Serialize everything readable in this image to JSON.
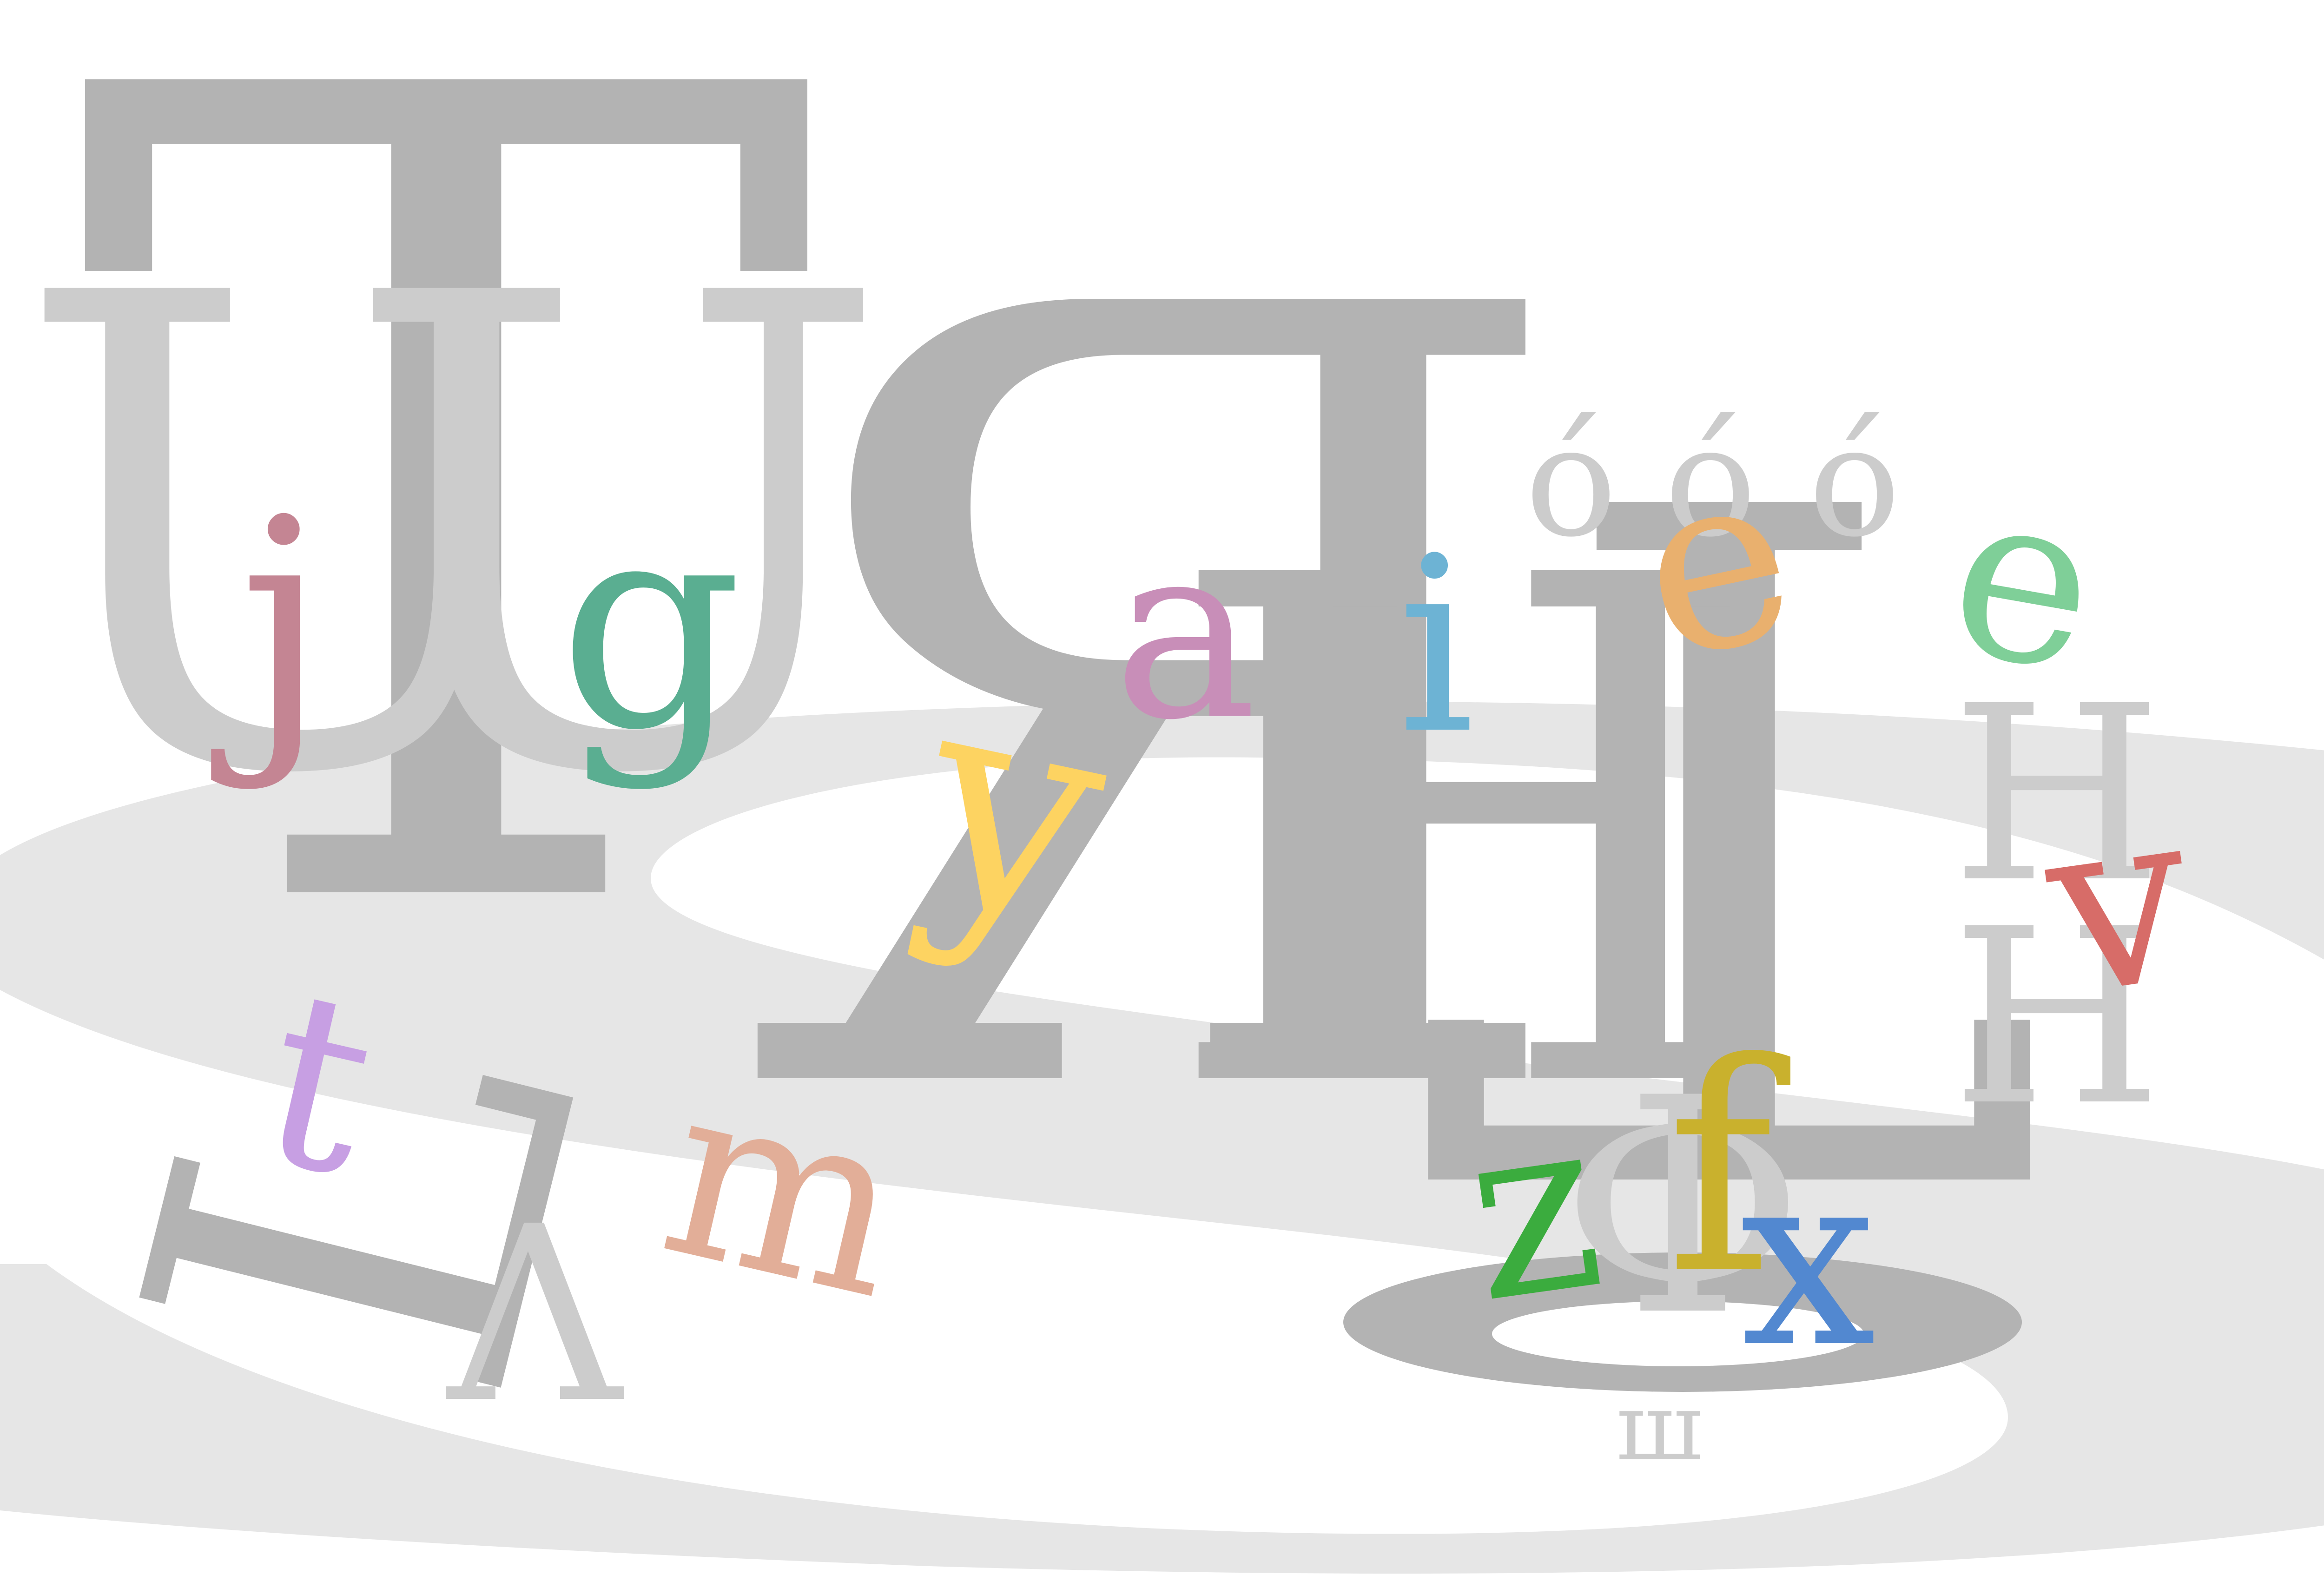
{
  "canvas": {
    "background": "#ffffff"
  },
  "colors": {
    "dark_gray": "#b3b3b3",
    "light_gray": "#cccccc",
    "band_gray": "#e6e6e6",
    "mauve": "#c48593",
    "teal": "#5aae91",
    "purple_pink": "#c88eb8",
    "yellow": "#fdd361",
    "sky_blue": "#6db3d4",
    "orange": "#e9b06e",
    "mint": "#7fcf98",
    "red": "#d76c68",
    "lavender": "#c79fe3",
    "salmon": "#e2ae98",
    "green": "#3bac3e",
    "mustard": "#c9b12d",
    "blue": "#5288d0"
  },
  "glyphs": {
    "big_T": "T",
    "U_left": "U",
    "U_right": "U",
    "big_R": "Я",
    "big_T_right": "T",
    "H_mid": "H",
    "H_stack_top": "H",
    "H_stack_bottom": "H",
    "o_1": "ó",
    "o_2": "ó",
    "o_3": "ó",
    "j": "j",
    "g": "g",
    "a": "a",
    "y": "y",
    "i": "i",
    "e_orange": "e",
    "e_mint": "e",
    "v": "v",
    "t": "t",
    "m": "m",
    "L_rot": "L",
    "lambda": "Λ",
    "phi_wide": "Φ",
    "z": "z",
    "f": "f",
    "x": "x",
    "pi_tail": "ш"
  }
}
